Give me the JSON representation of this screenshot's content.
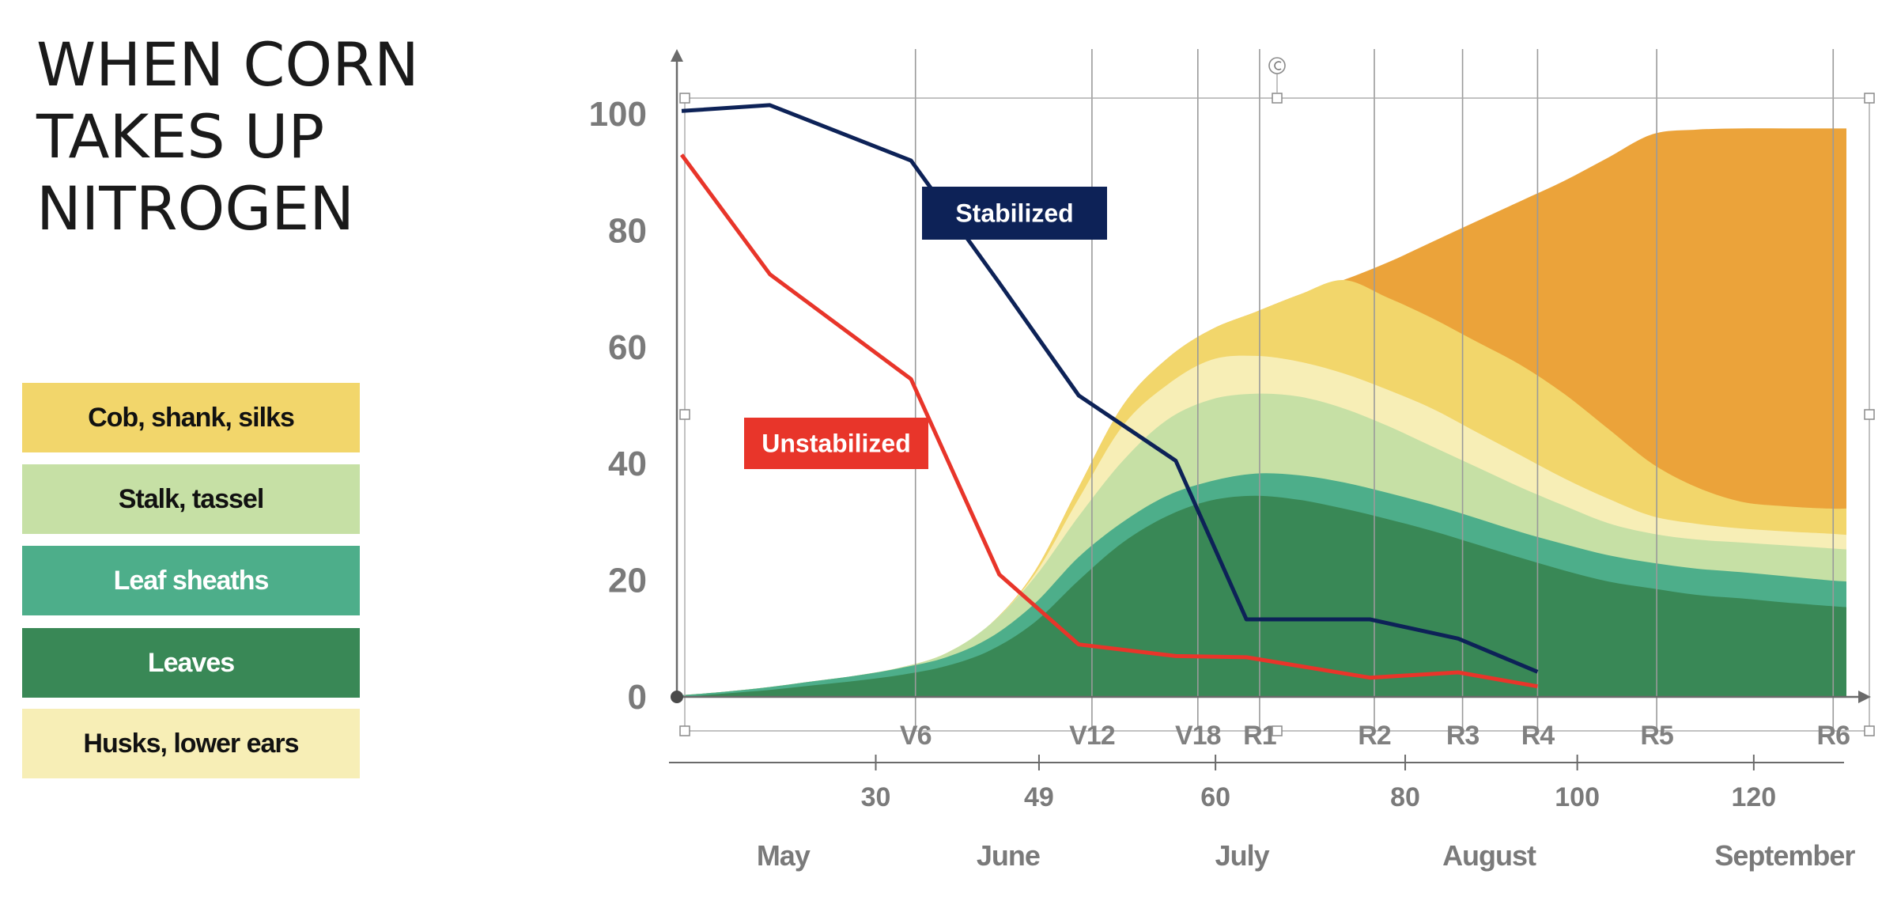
{
  "title_lines": [
    "WHEN CORN",
    "TAKES UP",
    "NITROGEN"
  ],
  "legend": [
    {
      "label": "Cob, shank, silks",
      "color": "#F2D66B",
      "text_color": "#111111"
    },
    {
      "label": "Stalk, tassel",
      "color": "#C6E0A5",
      "text_color": "#111111"
    },
    {
      "label": "Leaf sheaths",
      "color": "#4DAE8A",
      "text_color": "#ffffff"
    },
    {
      "label": "Leaves",
      "color": "#398856",
      "text_color": "#ffffff"
    },
    {
      "label": "Husks, lower ears",
      "color": "#F7EEB6",
      "text_color": "#111111"
    }
  ],
  "chart_data": {
    "type": "area",
    "ylim": [
      0,
      100
    ],
    "y_ticks": [
      0,
      20,
      40,
      60,
      80,
      100
    ],
    "xlim": [
      0,
      132
    ],
    "growth_stages": [
      {
        "label": "V6",
        "x": 26.5
      },
      {
        "label": "V12",
        "x": 46.5
      },
      {
        "label": "V18",
        "x": 58.5
      },
      {
        "label": "R1",
        "x": 65.5
      },
      {
        "label": "R2",
        "x": 78.5
      },
      {
        "label": "R3",
        "x": 88.5
      },
      {
        "label": "R4",
        "x": 97
      },
      {
        "label": "R5",
        "x": 110.5
      },
      {
        "label": "R6",
        "x": 130.5
      }
    ],
    "day_ticks": [
      {
        "label": "30",
        "x": 22
      },
      {
        "label": "49",
        "x": 40.5
      },
      {
        "label": "60",
        "x": 60.5
      },
      {
        "label": "80",
        "x": 82
      },
      {
        "label": "100",
        "x": 101.5
      },
      {
        "label": "120",
        "x": 121.5
      }
    ],
    "months": [
      {
        "label": "May",
        "x": 11.5
      },
      {
        "label": "June",
        "x": 37
      },
      {
        "label": "July",
        "x": 63.5
      },
      {
        "label": "August",
        "x": 91.5
      },
      {
        "label": "September",
        "x": 125
      }
    ],
    "stacked_series": [
      {
        "name": "Leaves",
        "color": "#398856",
        "points": [
          [
            0,
            0
          ],
          [
            5,
            0.6
          ],
          [
            10,
            1.2
          ],
          [
            15,
            2
          ],
          [
            20,
            2.8
          ],
          [
            25,
            3.8
          ],
          [
            30,
            5.3
          ],
          [
            35,
            8
          ],
          [
            40,
            12.8
          ],
          [
            45,
            20
          ],
          [
            50,
            26.5
          ],
          [
            55,
            31
          ],
          [
            60,
            33.7
          ],
          [
            65,
            34.5
          ],
          [
            70,
            33.8
          ],
          [
            75,
            32.3
          ],
          [
            80,
            30.5
          ],
          [
            85,
            28.5
          ],
          [
            90,
            26.2
          ],
          [
            95,
            23.9
          ],
          [
            100,
            21.7
          ],
          [
            105,
            19.8
          ],
          [
            110,
            18.6
          ],
          [
            115,
            17.5
          ],
          [
            120,
            16.9
          ],
          [
            125,
            16.2
          ],
          [
            130,
            15.6
          ],
          [
            132,
            15.4
          ]
        ]
      },
      {
        "name": "Leaf sheaths",
        "color": "#4DAE8A",
        "points": [
          [
            0,
            0.3
          ],
          [
            5,
            0.9
          ],
          [
            10,
            1.7
          ],
          [
            15,
            2.7
          ],
          [
            20,
            3.7
          ],
          [
            25,
            5
          ],
          [
            30,
            6.8
          ],
          [
            35,
            10.2
          ],
          [
            40,
            16
          ],
          [
            45,
            24
          ],
          [
            50,
            30
          ],
          [
            55,
            34.5
          ],
          [
            60,
            37
          ],
          [
            65,
            38.3
          ],
          [
            70,
            38
          ],
          [
            75,
            36.8
          ],
          [
            80,
            35
          ],
          [
            85,
            33
          ],
          [
            90,
            30.7
          ],
          [
            95,
            28.3
          ],
          [
            100,
            26.2
          ],
          [
            105,
            24.3
          ],
          [
            110,
            23
          ],
          [
            115,
            22
          ],
          [
            120,
            21.4
          ],
          [
            125,
            20.7
          ],
          [
            130,
            20
          ],
          [
            132,
            19.8
          ]
        ]
      },
      {
        "name": "Stalk, tassel",
        "color": "#C6E0A5",
        "points": [
          [
            0,
            0.3
          ],
          [
            5,
            0.9
          ],
          [
            10,
            1.7
          ],
          [
            15,
            2.7
          ],
          [
            20,
            3.7
          ],
          [
            25,
            5.1
          ],
          [
            30,
            7.5
          ],
          [
            35,
            12.5
          ],
          [
            40,
            20.5
          ],
          [
            45,
            31
          ],
          [
            50,
            40.5
          ],
          [
            55,
            47.5
          ],
          [
            60,
            51
          ],
          [
            65,
            52
          ],
          [
            70,
            51.5
          ],
          [
            75,
            49.5
          ],
          [
            80,
            46.5
          ],
          [
            85,
            43
          ],
          [
            90,
            39.5
          ],
          [
            95,
            36
          ],
          [
            100,
            32.8
          ],
          [
            105,
            29.8
          ],
          [
            110,
            28
          ],
          [
            115,
            27
          ],
          [
            120,
            26.5
          ],
          [
            125,
            26
          ],
          [
            130,
            25.5
          ],
          [
            132,
            25.3
          ]
        ]
      },
      {
        "name": "Husks, lower ears",
        "color": "#F7EEB6",
        "points": [
          [
            0,
            0.3
          ],
          [
            5,
            0.9
          ],
          [
            10,
            1.7
          ],
          [
            15,
            2.7
          ],
          [
            20,
            3.7
          ],
          [
            25,
            5.1
          ],
          [
            30,
            7.5
          ],
          [
            35,
            12.5
          ],
          [
            40,
            21
          ],
          [
            45,
            34
          ],
          [
            50,
            46.5
          ],
          [
            55,
            53.5
          ],
          [
            60,
            57.8
          ],
          [
            65,
            58.5
          ],
          [
            70,
            57.5
          ],
          [
            75,
            55.5
          ],
          [
            80,
            52.7
          ],
          [
            85,
            49.5
          ],
          [
            90,
            45.5
          ],
          [
            95,
            41.5
          ],
          [
            100,
            37.5
          ],
          [
            105,
            34
          ],
          [
            110,
            31
          ],
          [
            115,
            29.7
          ],
          [
            120,
            28.9
          ],
          [
            125,
            28.4
          ],
          [
            130,
            28
          ],
          [
            132,
            27.8
          ]
        ]
      },
      {
        "name": "Cob, shank, silks",
        "color": "#F2D66B",
        "points": [
          [
            0,
            0.3
          ],
          [
            5,
            0.9
          ],
          [
            10,
            1.7
          ],
          [
            15,
            2.7
          ],
          [
            20,
            3.7
          ],
          [
            25,
            5.1
          ],
          [
            30,
            7.5
          ],
          [
            35,
            12.5
          ],
          [
            40,
            21.5
          ],
          [
            45,
            36
          ],
          [
            50,
            50
          ],
          [
            55,
            58
          ],
          [
            60,
            63
          ],
          [
            65,
            66
          ],
          [
            70,
            69
          ],
          [
            75,
            71.5
          ],
          [
            80,
            68.5
          ],
          [
            85,
            65
          ],
          [
            90,
            61
          ],
          [
            95,
            57
          ],
          [
            100,
            52
          ],
          [
            105,
            46
          ],
          [
            110,
            40
          ],
          [
            115,
            36
          ],
          [
            120,
            33.5
          ],
          [
            125,
            32.7
          ],
          [
            130,
            32.3
          ],
          [
            132,
            32.3
          ]
        ]
      },
      {
        "name": "",
        "color": "#EBA33A",
        "points": [
          [
            0,
            0.3
          ],
          [
            5,
            0.9
          ],
          [
            10,
            1.7
          ],
          [
            15,
            2.7
          ],
          [
            20,
            3.7
          ],
          [
            25,
            5.1
          ],
          [
            30,
            7.5
          ],
          [
            35,
            12.5
          ],
          [
            40,
            21.5
          ],
          [
            45,
            36
          ],
          [
            50,
            50
          ],
          [
            55,
            58
          ],
          [
            60,
            63
          ],
          [
            65,
            66
          ],
          [
            70,
            69
          ],
          [
            75,
            71.5
          ],
          [
            80,
            74.5
          ],
          [
            85,
            78
          ],
          [
            90,
            81.5
          ],
          [
            95,
            85
          ],
          [
            100,
            88.5
          ],
          [
            105,
            92.5
          ],
          [
            110,
            96.5
          ],
          [
            115,
            97.3
          ],
          [
            120,
            97.5
          ],
          [
            125,
            97.5
          ],
          [
            130,
            97.5
          ],
          [
            132,
            97.5
          ]
        ]
      }
    ],
    "line_series": [
      {
        "name": "Stabilized",
        "color": "#0D2257",
        "points": [
          [
            0,
            100.5
          ],
          [
            10,
            101.5
          ],
          [
            26,
            92
          ],
          [
            36,
            71
          ],
          [
            45,
            51.7
          ],
          [
            56,
            40.5
          ],
          [
            64,
            13.3
          ],
          [
            78,
            13.3
          ],
          [
            88,
            10
          ],
          [
            97,
            4.3
          ]
        ]
      },
      {
        "name": "Unstabilized",
        "color": "#E8352A",
        "points": [
          [
            0,
            93
          ],
          [
            10,
            72.5
          ],
          [
            26,
            54.5
          ],
          [
            36,
            21
          ],
          [
            45,
            9
          ],
          [
            56,
            7
          ],
          [
            64,
            6.8
          ],
          [
            78,
            3.3
          ],
          [
            88,
            4.2
          ],
          [
            97,
            1.8
          ]
        ]
      }
    ],
    "line_labels": [
      {
        "text": "Stabilized",
        "color": "#0D2257",
        "series": "Stabilized"
      },
      {
        "text": "Unstabilized",
        "color": "#E8352A",
        "series": "Unstabilized"
      }
    ]
  }
}
